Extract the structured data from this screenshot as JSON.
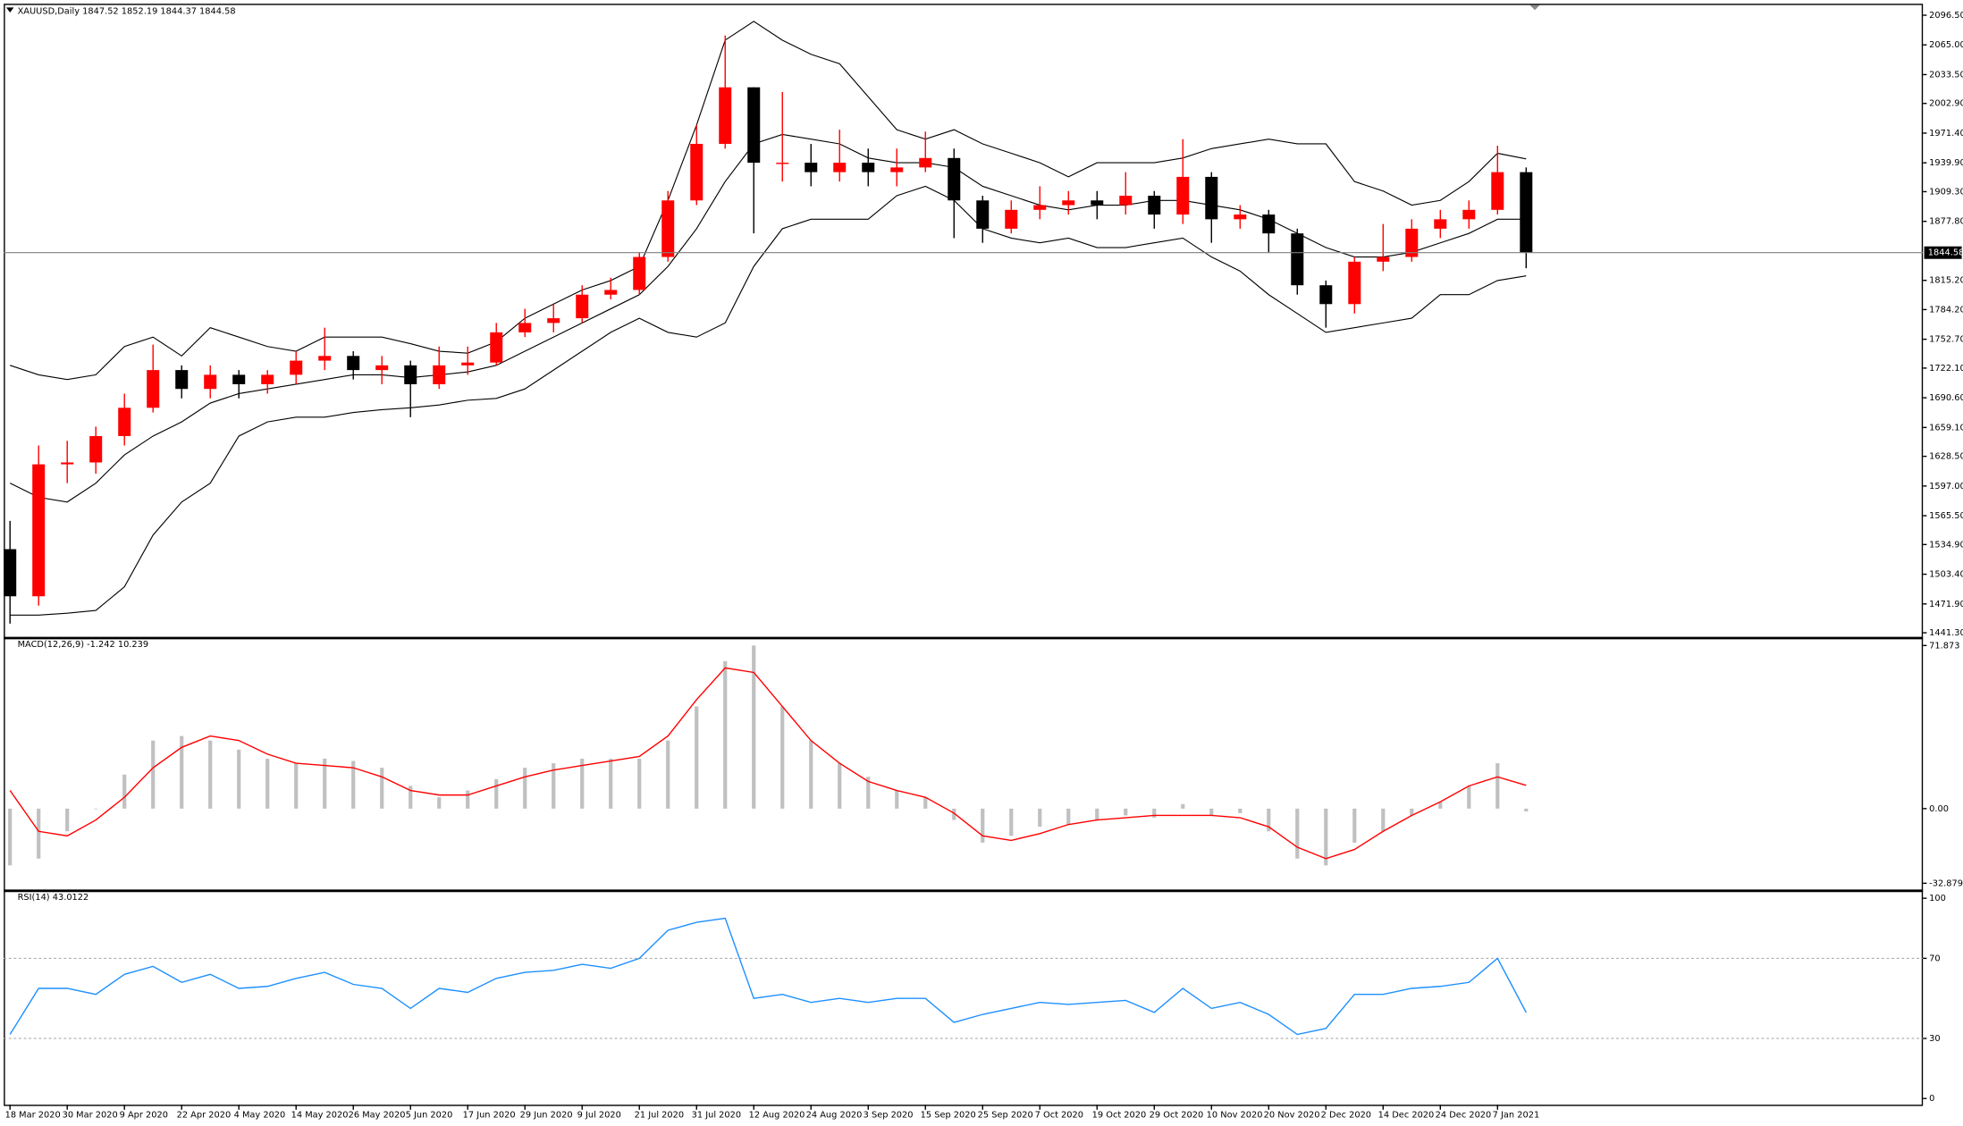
{
  "chart_data": [
    {
      "type": "candlestick",
      "title": "XAUUSD,Daily  1847.52 1852.19 1844.37 1844.58",
      "categories": [
        "18 Mar 2020",
        null,
        "30 Mar 2020",
        null,
        "9 Apr 2020",
        null,
        "22 Apr 2020",
        null,
        "4 May 2020",
        null,
        "14 May 2020",
        null,
        "26 May 2020",
        null,
        "5 Jun 2020",
        null,
        "17 Jun 2020",
        null,
        "29 Jun 2020",
        null,
        "9 Jul 2020",
        null,
        "21 Jul 2020",
        null,
        "31 Jul 2020",
        null,
        "12 Aug 2020",
        null,
        "24 Aug 2020",
        null,
        "3 Sep 2020",
        null,
        "15 Sep 2020",
        null,
        "25 Sep 2020",
        null,
        "7 Oct 2020",
        null,
        "19 Oct 2020",
        null,
        "29 Oct 2020",
        null,
        "10 Nov 2020",
        null,
        "20 Nov 2020",
        null,
        "2 Dec 2020",
        null,
        "14 Dec 2020",
        null,
        "24 Dec 2020",
        null,
        "7 Jan 2021",
        null
      ],
      "open": [
        1530,
        1480,
        1620,
        1622,
        1650,
        1680,
        1720,
        1700,
        1715,
        1705,
        1715,
        1730,
        1735,
        1720,
        1725,
        1705,
        1725,
        1728,
        1760,
        1770,
        1775,
        1800,
        1805,
        1840,
        1900,
        1960,
        2020,
        1940,
        1940,
        1930,
        1940,
        1930,
        1935,
        1945,
        1900,
        1870,
        1890,
        1895,
        1900,
        1895,
        1905,
        1885,
        1925,
        1880,
        1885,
        1865,
        1810,
        1790,
        1835,
        1840,
        1870,
        1880,
        1890,
        1930
      ],
      "high": [
        1560,
        1640,
        1645,
        1660,
        1695,
        1747,
        1725,
        1725,
        1720,
        1720,
        1740,
        1765,
        1740,
        1735,
        1730,
        1745,
        1745,
        1770,
        1785,
        1790,
        1810,
        1818,
        1845,
        1910,
        1980,
        2075,
        2020,
        2015,
        1960,
        1975,
        1955,
        1955,
        1973,
        1955,
        1905,
        1900,
        1915,
        1910,
        1910,
        1930,
        1910,
        1965,
        1930,
        1895,
        1890,
        1870,
        1815,
        1840,
        1875,
        1880,
        1890,
        1900,
        1958,
        1935
      ],
      "low": [
        1451,
        1470,
        1600,
        1610,
        1640,
        1675,
        1690,
        1690,
        1690,
        1695,
        1705,
        1720,
        1710,
        1705,
        1670,
        1700,
        1715,
        1725,
        1755,
        1760,
        1770,
        1795,
        1800,
        1835,
        1895,
        1955,
        1865,
        1920,
        1915,
        1920,
        1915,
        1915,
        1930,
        1860,
        1855,
        1865,
        1880,
        1885,
        1880,
        1885,
        1870,
        1875,
        1855,
        1870,
        1845,
        1800,
        1765,
        1780,
        1825,
        1835,
        1860,
        1870,
        1885,
        1828
      ],
      "close": [
        1480,
        1620,
        1622,
        1650,
        1680,
        1720,
        1700,
        1715,
        1705,
        1715,
        1730,
        1735,
        1720,
        1725,
        1705,
        1725,
        1728,
        1760,
        1770,
        1775,
        1800,
        1805,
        1840,
        1900,
        1960,
        2020,
        1940,
        1940,
        1930,
        1940,
        1930,
        1935,
        1945,
        1900,
        1870,
        1890,
        1895,
        1900,
        1895,
        1905,
        1885,
        1925,
        1880,
        1885,
        1865,
        1810,
        1790,
        1835,
        1840,
        1870,
        1880,
        1890,
        1930,
        1844.58
      ],
      "up_color": "#ff0000",
      "down_color": "#000000",
      "bands": [
        {
          "color": "#000000",
          "values": [
            1725,
            1715,
            1710,
            1715,
            1745,
            1755,
            1735,
            1765,
            1755,
            1745,
            1740,
            1755,
            1755,
            1755,
            1748,
            1740,
            1738,
            1750,
            1775,
            1790,
            1805,
            1815,
            1830,
            1900,
            1980,
            2070,
            2090,
            2070,
            2055,
            2045,
            2010,
            1975,
            1965,
            1975,
            1960,
            1950,
            1940,
            1925,
            1940,
            1940,
            1940,
            1945,
            1955,
            1960,
            1965,
            1960,
            1960,
            1920,
            1910,
            1895,
            1900,
            1920,
            1950,
            1944
          ]
        },
        {
          "color": "#000000",
          "values": [
            1600,
            1585,
            1580,
            1600,
            1630,
            1650,
            1665,
            1685,
            1695,
            1700,
            1705,
            1710,
            1715,
            1715,
            1712,
            1715,
            1718,
            1725,
            1740,
            1755,
            1770,
            1785,
            1800,
            1830,
            1870,
            1920,
            1960,
            1970,
            1965,
            1960,
            1945,
            1940,
            1940,
            1935,
            1915,
            1905,
            1895,
            1890,
            1895,
            1895,
            1900,
            1900,
            1895,
            1890,
            1880,
            1865,
            1850,
            1840,
            1840,
            1845,
            1855,
            1865,
            1880,
            1880
          ]
        },
        {
          "color": "#000000",
          "values": [
            1460,
            1460,
            1462,
            1465,
            1490,
            1545,
            1580,
            1600,
            1650,
            1665,
            1670,
            1670,
            1675,
            1678,
            1680,
            1683,
            1688,
            1690,
            1700,
            1720,
            1740,
            1760,
            1775,
            1760,
            1755,
            1770,
            1830,
            1870,
            1880,
            1880,
            1880,
            1905,
            1915,
            1900,
            1870,
            1860,
            1855,
            1860,
            1850,
            1850,
            1855,
            1860,
            1840,
            1825,
            1800,
            1780,
            1760,
            1765,
            1770,
            1775,
            1800,
            1800,
            1815,
            1820
          ]
        }
      ],
      "current_price": 1844.58,
      "ylim": [
        1437,
        2106
      ],
      "yticks": [
        {
          "value": 2096.5,
          "label": "2096.50"
        },
        {
          "value": 2065,
          "label": "2065.00"
        },
        {
          "value": 2033.5,
          "label": "2033.50"
        },
        {
          "value": 2002.9,
          "label": "2002.90"
        },
        {
          "value": 1971.4,
          "label": "1971.40"
        },
        {
          "value": 1939.9,
          "label": "1939.90"
        },
        {
          "value": 1909.3,
          "label": "1909.30"
        },
        {
          "value": 1877.8,
          "label": "1877.80"
        },
        {
          "value": 1815.2,
          "label": "1815.20"
        },
        {
          "value": 1784.2,
          "label": "1784.20"
        },
        {
          "value": 1752.7,
          "label": "1752.70"
        },
        {
          "value": 1722.1,
          "label": "1722.10"
        },
        {
          "value": 1690.6,
          "label": "1690.60"
        },
        {
          "value": 1659.1,
          "label": "1659.10"
        },
        {
          "value": 1628.5,
          "label": "1628.50"
        },
        {
          "value": 1597,
          "label": "1597.00"
        },
        {
          "value": 1565.5,
          "label": "1565.50"
        },
        {
          "value": 1534.9,
          "label": "1534.90"
        },
        {
          "value": 1503.4,
          "label": "1503.40"
        },
        {
          "value": 1471.9,
          "label": "1471.90"
        },
        {
          "value": 1441.3,
          "label": "1441.30"
        }
      ]
    },
    {
      "type": "macd",
      "title": "MACD(12,26,9) -1.242 10.239",
      "histogram": {
        "color": "#c0c0c0",
        "values": [
          -25,
          -22,
          -10,
          0,
          15,
          30,
          32,
          30,
          26,
          22,
          20,
          22,
          21,
          18,
          10,
          5,
          8,
          13,
          18,
          20,
          22,
          22,
          22,
          30,
          45,
          65,
          71.873,
          45,
          30,
          20,
          14,
          8,
          5,
          -5,
          -15,
          -12,
          -8,
          -7,
          -5,
          -3,
          -4,
          2,
          -3,
          -2,
          -10,
          -22,
          -25,
          -15,
          -10,
          -3,
          3,
          10,
          20,
          -1.242
        ]
      },
      "signal": {
        "color": "#ff0000",
        "values": [
          8,
          -10,
          -12,
          -5,
          5,
          18,
          27,
          32,
          30,
          24,
          20,
          19,
          18,
          14,
          8,
          6,
          6,
          10,
          14,
          17,
          19,
          21,
          23,
          32,
          48,
          62,
          60,
          45,
          30,
          20,
          12,
          8,
          5,
          -2,
          -12,
          -14,
          -11,
          -7,
          -5,
          -4,
          -3,
          -3,
          -3,
          -4,
          -8,
          -17,
          -22,
          -18,
          -10,
          -3,
          3,
          10,
          14,
          10.239
        ]
      },
      "ylim": [
        -35.1,
        74.6
      ],
      "yticks": [
        71.873,
        {
          "value": 0,
          "label": "0.00"
        },
        -32.879
      ]
    },
    {
      "type": "rsi",
      "title": "RSI(14) 43.0122",
      "color": "#1e90ff",
      "values": [
        32,
        55,
        55,
        52,
        62,
        66,
        58,
        62,
        55,
        56,
        60,
        63,
        57,
        55,
        45,
        55,
        53,
        60,
        63,
        64,
        67,
        65,
        70,
        84,
        88,
        90,
        50,
        52,
        48,
        50,
        48,
        50,
        50,
        38,
        42,
        45,
        48,
        47,
        48,
        49,
        43,
        55,
        45,
        48,
        42,
        32,
        35,
        52,
        52,
        55,
        56,
        58,
        70,
        43.0122
      ],
      "levels": [
        30,
        70
      ],
      "ylim": [
        -3.1,
        103.1
      ],
      "yticks": [
        100,
        70,
        30,
        0
      ]
    }
  ]
}
